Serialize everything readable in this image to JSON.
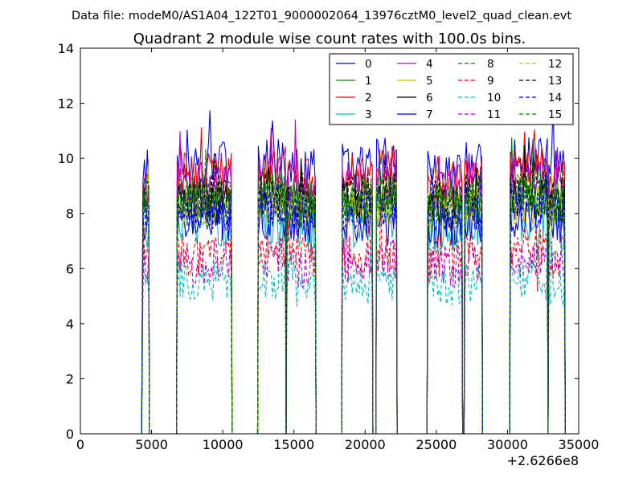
{
  "header": {
    "file_line": "Data file: modeM0/AS1A04_122T01_9000002064_13976cztM0_level2_quad_clean.evt"
  },
  "chart_data": {
    "type": "line",
    "title": "Quadrant 2 module wise count rates with 100.0s bins.",
    "xlabel": "",
    "ylabel": "",
    "x_offset_label": "+2.6266e8",
    "xlim": [
      0,
      35000
    ],
    "ylim": [
      0,
      14
    ],
    "x_ticks": [
      0,
      5000,
      10000,
      15000,
      20000,
      25000,
      30000,
      35000
    ],
    "x_tick_labels": [
      "0",
      "5000",
      "10000",
      "15000",
      "20000",
      "25000",
      "30000",
      "35000"
    ],
    "y_ticks": [
      0,
      2,
      4,
      6,
      8,
      10,
      12,
      14
    ],
    "y_tick_labels": [
      "0",
      "2",
      "4",
      "6",
      "8",
      "10",
      "12",
      "14"
    ],
    "grid": false,
    "legend_position": "top-right",
    "legend_columns": 4,
    "segments": [
      [
        4400,
        4800
      ],
      [
        6800,
        10600
      ],
      [
        12500,
        14400
      ],
      [
        14500,
        16500
      ],
      [
        18400,
        20500
      ],
      [
        20800,
        22200
      ],
      [
        24400,
        26800
      ],
      [
        27000,
        28200
      ],
      [
        30200,
        32800
      ],
      [
        32900,
        34000
      ]
    ],
    "series": [
      {
        "name": "0",
        "color": "#0000ff",
        "dash": false,
        "level": 9.6
      },
      {
        "name": "1",
        "color": "#008000",
        "dash": false,
        "level": 8.6
      },
      {
        "name": "2",
        "color": "#ff0000",
        "dash": false,
        "level": 9.3
      },
      {
        "name": "3",
        "color": "#00bfbf",
        "dash": false,
        "level": 7.4
      },
      {
        "name": "4",
        "color": "#bf00bf",
        "dash": false,
        "level": 8.9
      },
      {
        "name": "5",
        "color": "#bfbf00",
        "dash": false,
        "level": 8.0
      },
      {
        "name": "6",
        "color": "#000000",
        "dash": false,
        "level": 8.2
      },
      {
        "name": "7",
        "color": "#0000ff",
        "dash": false,
        "level": 7.6
      },
      {
        "name": "8",
        "color": "#008000",
        "dash": true,
        "level": 8.4
      },
      {
        "name": "9",
        "color": "#ff0000",
        "dash": true,
        "level": 6.4
      },
      {
        "name": "10",
        "color": "#00bfbf",
        "dash": true,
        "level": 5.4
      },
      {
        "name": "11",
        "color": "#bf00bf",
        "dash": true,
        "level": 6.1
      },
      {
        "name": "12",
        "color": "#bfbf00",
        "dash": true,
        "level": 8.1
      },
      {
        "name": "13",
        "color": "#000000",
        "dash": true,
        "level": 8.5
      },
      {
        "name": "14",
        "color": "#0000ff",
        "dash": true,
        "level": 8.0
      },
      {
        "name": "15",
        "color": "#008000",
        "dash": true,
        "level": 8.3
      }
    ]
  }
}
